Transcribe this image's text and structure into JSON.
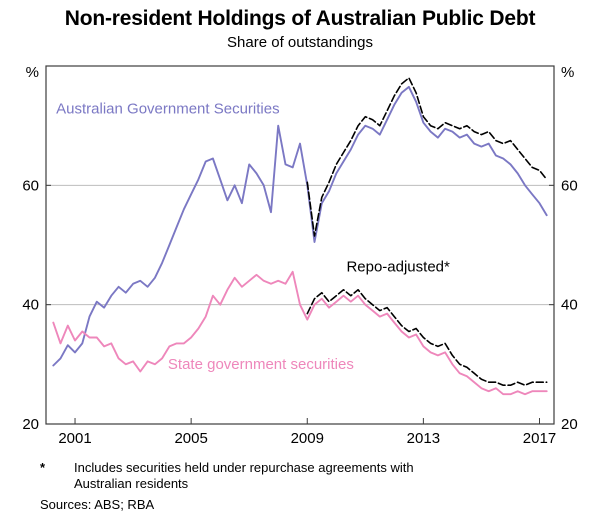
{
  "page": {
    "footnote_marker": "*",
    "footnote_text": "Includes securities held under repurchase agreements with Australian residents",
    "sources": "Sources: ABS; RBA"
  },
  "chart_data": {
    "type": "line",
    "title": "Non-resident Holdings of Australian Public Debt",
    "subtitle": "Share of outstandings",
    "ylabel_unit": "%",
    "ylim": [
      20,
      80
    ],
    "xlim": [
      2000.0,
      2017.5
    ],
    "yticks": [
      20,
      40,
      60
    ],
    "xticks": [
      2001,
      2005,
      2009,
      2013,
      2017
    ],
    "gridlines": [
      40,
      60
    ],
    "legend_position": "in-chart-labels",
    "grid": "horizontal-only",
    "series": [
      {
        "id": "ags",
        "name": "Australian Government Securities",
        "color": "#7b78c4",
        "style": "solid",
        "x0": 2000.25,
        "dx": 0.25,
        "y": [
          29.8,
          31.0,
          33.2,
          32.0,
          33.5,
          38.0,
          40.5,
          39.5,
          41.5,
          43.0,
          42.0,
          43.5,
          44.0,
          43.0,
          44.5,
          47.0,
          50.0,
          53.0,
          56.0,
          58.5,
          61.0,
          64.0,
          64.5,
          61.0,
          57.5,
          60.0,
          57.0,
          63.5,
          62.0,
          60.0,
          55.5,
          70.0,
          63.5,
          63.0,
          67.0,
          60.0,
          50.5,
          57.0,
          59.0,
          62.0,
          64.0,
          66.0,
          68.5,
          70.0,
          69.5,
          68.5,
          71.0,
          73.5,
          75.5,
          76.5,
          74.0,
          70.5,
          69.0,
          68.0,
          69.5,
          69.0,
          68.0,
          68.5,
          67.0,
          66.5,
          67.0,
          65.0,
          64.5,
          63.5,
          62.0,
          60.0,
          58.5,
          57.0,
          55.0
        ]
      },
      {
        "id": "sgs",
        "name": "State government securities",
        "color": "#ee87bb",
        "style": "solid",
        "x0": 2000.25,
        "dx": 0.25,
        "y": [
          37.0,
          33.5,
          36.5,
          34.0,
          35.5,
          34.5,
          34.5,
          33.0,
          33.5,
          31.0,
          30.0,
          30.5,
          28.8,
          30.5,
          30.0,
          31.0,
          33.0,
          33.5,
          33.5,
          34.5,
          36.0,
          38.0,
          41.5,
          40.0,
          42.5,
          44.5,
          43.0,
          44.0,
          45.0,
          44.0,
          43.5,
          44.0,
          43.5,
          45.5,
          40.0,
          37.5,
          40.0,
          41.0,
          39.5,
          40.5,
          41.5,
          40.5,
          41.5,
          40.0,
          39.0,
          38.0,
          38.5,
          37.0,
          35.5,
          34.5,
          35.0,
          33.0,
          32.0,
          31.5,
          32.0,
          30.0,
          28.5,
          28.0,
          27.0,
          26.0,
          25.5,
          26.0,
          25.0,
          25.0,
          25.5,
          25.0,
          25.5,
          25.5,
          25.5
        ]
      },
      {
        "id": "ags-repo",
        "name": "Australian Government Securities (repo-adjusted)",
        "color": "#000000",
        "style": "dashed",
        "x0": 2009.0,
        "dx": 0.25,
        "y": [
          60.5,
          51.5,
          58.0,
          60.5,
          63.5,
          65.5,
          67.5,
          70.0,
          71.5,
          71.0,
          70.0,
          72.5,
          75.0,
          77.0,
          78.0,
          75.5,
          71.5,
          70.0,
          69.5,
          70.5,
          70.0,
          69.5,
          70.0,
          69.0,
          68.5,
          69.0,
          67.5,
          67.0,
          67.5,
          66.0,
          64.5,
          63.0,
          62.5,
          61.0
        ]
      },
      {
        "id": "sgs-repo",
        "name": "State government securities (repo-adjusted)",
        "color": "#000000",
        "style": "dashed",
        "x0": 2009.0,
        "dx": 0.25,
        "y": [
          38.5,
          41.0,
          42.0,
          40.5,
          41.5,
          42.5,
          41.5,
          42.5,
          41.0,
          40.0,
          39.0,
          39.5,
          38.0,
          36.5,
          35.5,
          36.0,
          34.5,
          33.5,
          33.0,
          33.5,
          31.5,
          30.0,
          29.5,
          28.5,
          27.5,
          27.0,
          27.0,
          26.5,
          26.5,
          27.0,
          26.5,
          27.0,
          27.0,
          27.0
        ]
      }
    ],
    "annotations": [
      {
        "id": "label-ags",
        "text": "Australian Government Securities",
        "color": "#7b78c4",
        "x": 2000.35,
        "y": 72.0
      },
      {
        "id": "label-repo-adjusted",
        "text": "Repo-adjusted*",
        "color": "#000000",
        "x": 2010.35,
        "y": 45.6
      },
      {
        "id": "label-sgs",
        "text": "State government securities",
        "color": "#ee87bb",
        "x": 2004.2,
        "y": 29.2
      }
    ]
  }
}
